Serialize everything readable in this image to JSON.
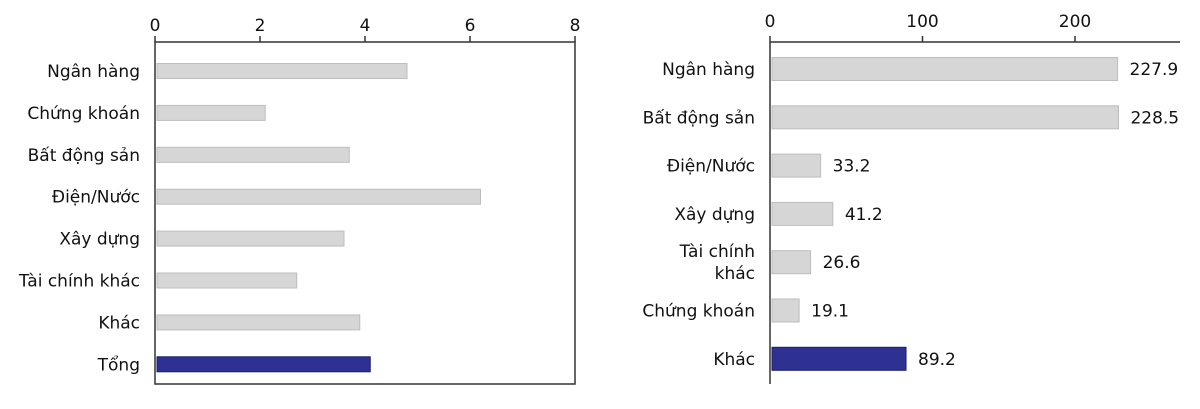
{
  "chart_data": [
    {
      "type": "bar",
      "orientation": "horizontal",
      "categories": [
        "Ngân hàng",
        "Chứng khoán",
        "Bất động sản",
        "Điện/Nước",
        "Xây dựng",
        "Tài chính khác",
        "Khác",
        "Tổng"
      ],
      "values": [
        4.8,
        2.1,
        3.7,
        6.2,
        3.6,
        2.7,
        3.9,
        4.1
      ],
      "highlight_index": 7,
      "xlim": [
        0,
        8
      ],
      "xticks": [
        "0",
        "2",
        "4",
        "6",
        "8"
      ],
      "data_labels": false,
      "grid": false,
      "title": "",
      "xlabel": "",
      "ylabel": ""
    },
    {
      "type": "bar",
      "orientation": "horizontal",
      "categories": [
        [
          "Ngân hàng"
        ],
        [
          "Bất động sản"
        ],
        [
          "Điện/Nước"
        ],
        [
          "Xây dựng"
        ],
        [
          "Tài chính",
          "khác"
        ],
        [
          "Chứng khoán"
        ],
        [
          "Khác"
        ]
      ],
      "values": [
        227.9,
        228.5,
        33.2,
        41.2,
        26.6,
        19.1,
        89.2
      ],
      "value_labels": [
        "227.9",
        "228.5",
        "33.2",
        "41.2",
        "26.6",
        "19.1",
        "89.2"
      ],
      "highlight_index": 6,
      "xlim": [
        0,
        230
      ],
      "xticks": [
        "0",
        "100",
        "200"
      ],
      "data_labels": true,
      "grid": false,
      "title": "",
      "xlabel": "",
      "ylabel": ""
    }
  ],
  "colors": {
    "bar": "#d6d6d6",
    "bar_stroke": "#bdbdbd",
    "highlight": "#2e3192",
    "highlight_stroke": "#1b1e6e",
    "axis": "#333333"
  }
}
